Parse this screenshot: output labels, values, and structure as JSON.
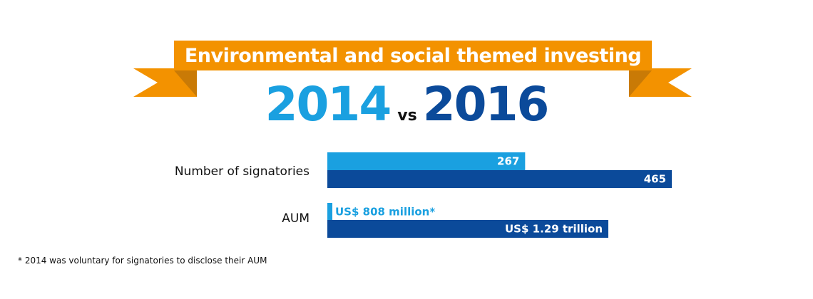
{
  "title": "Environmental and social themed investing",
  "year_a": "2014",
  "vs": "vs",
  "year_b": "2016",
  "colors": {
    "banner": "#f39200",
    "banner_fold": "#c97a06",
    "year_2014": "#1aa0e0",
    "year_2016": "#0b4a9a"
  },
  "chart_data": {
    "type": "bar",
    "orientation": "horizontal",
    "groups": [
      {
        "label": "Number of signatories",
        "bars": [
          {
            "year": "2014",
            "value": 267,
            "value_label": "267"
          },
          {
            "year": "2016",
            "value": 465,
            "value_label": "465"
          }
        ]
      },
      {
        "label": "AUM",
        "bars": [
          {
            "year": "2014",
            "value": 0.000808,
            "value_label": "US$ 808 million*"
          },
          {
            "year": "2016",
            "value": 1.29,
            "value_label": "US$ 1.29 trillion"
          }
        ]
      }
    ]
  },
  "footnote": "* 2014 was voluntary for signatories to disclose their AUM"
}
